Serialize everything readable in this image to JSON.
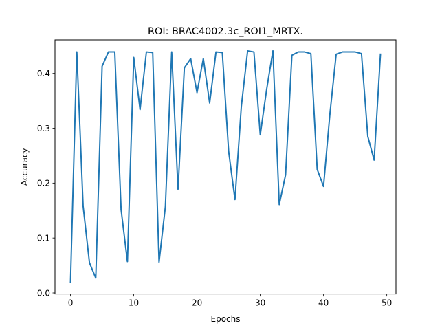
{
  "chart_data": {
    "type": "line",
    "title": "ROI: BRAC4002.3c_ROI1_MRTX.",
    "xlabel": "Epochs",
    "ylabel": "Accuracy",
    "xlim": [
      -2.45,
      51.45
    ],
    "ylim": [
      -0.002,
      0.461
    ],
    "xticks": [
      0,
      10,
      20,
      30,
      40,
      50
    ],
    "xtick_labels": [
      "0",
      "10",
      "20",
      "30",
      "40",
      "50"
    ],
    "yticks": [
      0.0,
      0.1,
      0.2,
      0.3,
      0.4
    ],
    "ytick_labels": [
      "0.0",
      "0.1",
      "0.2",
      "0.3",
      "0.4"
    ],
    "grid": false,
    "series": [
      {
        "color": "#1f77b4",
        "x": [
          0,
          1,
          2,
          3,
          4,
          5,
          6,
          7,
          8,
          9,
          10,
          11,
          12,
          13,
          14,
          15,
          16,
          17,
          18,
          19,
          20,
          21,
          22,
          23,
          24,
          25,
          26,
          27,
          28,
          29,
          30,
          31,
          32,
          33,
          34,
          35,
          36,
          37,
          38,
          39,
          40,
          41,
          42,
          43,
          44,
          45,
          46,
          47,
          48,
          49
        ],
        "values": [
          0.019,
          0.439,
          0.158,
          0.055,
          0.027,
          0.413,
          0.439,
          0.439,
          0.152,
          0.057,
          0.429,
          0.334,
          0.439,
          0.438,
          0.056,
          0.157,
          0.439,
          0.189,
          0.41,
          0.427,
          0.365,
          0.427,
          0.346,
          0.439,
          0.438,
          0.258,
          0.17,
          0.339,
          0.441,
          0.439,
          0.288,
          0.37,
          0.441,
          0.161,
          0.215,
          0.433,
          0.439,
          0.439,
          0.436,
          0.225,
          0.194,
          0.325,
          0.435,
          0.439,
          0.439,
          0.439,
          0.436,
          0.285,
          0.242,
          0.435
        ]
      }
    ]
  }
}
